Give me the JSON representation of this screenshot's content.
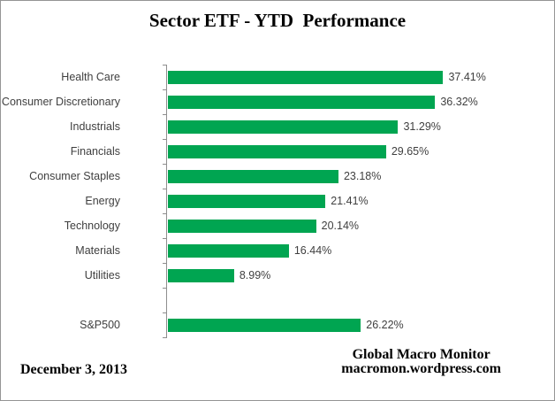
{
  "chart_data": {
    "type": "bar",
    "orientation": "horizontal",
    "title": "Sector ETF - YTD  Performance",
    "categories": [
      "Health Care",
      "Consumer Discretionary",
      "Industrials",
      "Financials",
      "Consumer Staples",
      "Energy",
      "Technology",
      "Materials",
      "Utilities",
      "S&P500"
    ],
    "values": [
      37.41,
      36.32,
      31.29,
      29.65,
      23.18,
      21.41,
      20.14,
      16.44,
      8.99,
      26.22
    ],
    "value_labels": [
      "37.41%",
      "36.32%",
      "31.29%",
      "29.65%",
      "23.18%",
      "21.41%",
      "20.14%",
      "16.44%",
      "8.99%",
      "26.22%"
    ],
    "gap_before_index": 9,
    "xlabel": "",
    "ylabel": "",
    "xlim": [
      0,
      40
    ],
    "grid": false,
    "legend": false,
    "bar_color": "#00A551"
  },
  "footer": {
    "date": "December 3, 2013",
    "source_line1": "Global Macro Monitor",
    "source_line2": "macromon.wordpress.com"
  },
  "colors": {
    "bar_green": "#00A551",
    "axis_gray": "#8E8E8E",
    "label_text": "#404040",
    "title_text": "#000000",
    "frame_border": "#959595",
    "background": "#FFFFFF"
  }
}
